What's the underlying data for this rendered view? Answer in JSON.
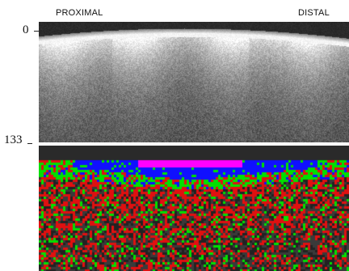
{
  "labels": {
    "proximal": "PROXIMAL",
    "distal": "DISTAL"
  },
  "axis": {
    "top_tick": "0",
    "bottom_tick": "133"
  },
  "colors": {
    "background": "#ffffff",
    "depth_blue": "#1010ff",
    "depth_magenta": "#ff00ff",
    "depth_green": "#00e000",
    "depth_red": "#e01010",
    "depth_gray": "#3a3a3a"
  }
}
